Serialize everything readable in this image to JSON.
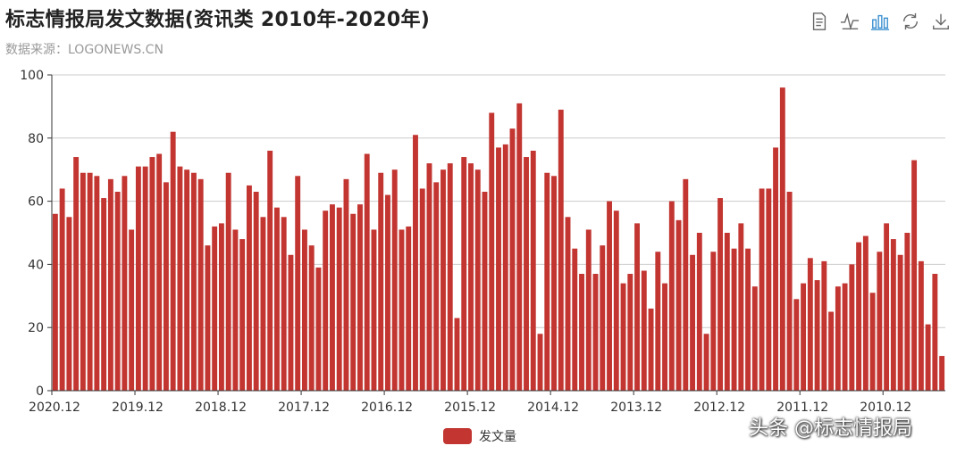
{
  "header": {
    "title": "标志情报局发文数据(资讯类 2010年-2020年)",
    "subtitle": "数据来源：LOGONEWS.CN"
  },
  "toolbox": [
    {
      "name": "data-view-icon",
      "label": "数据视图"
    },
    {
      "name": "line-chart-icon",
      "label": "切换为折线图"
    },
    {
      "name": "bar-chart-icon",
      "label": "切换为柱状图",
      "active": true
    },
    {
      "name": "restore-icon",
      "label": "还原"
    },
    {
      "name": "download-icon",
      "label": "保存为图片"
    }
  ],
  "colors": {
    "bar": "#c23531",
    "axis": "#333333",
    "grid": "#cccccc",
    "icon": "#666666",
    "icon_active": "#3a8fd0"
  },
  "chart_data": {
    "type": "bar",
    "x_tick_labels": [
      "2020.12",
      "2019.12",
      "2018.12",
      "2017.12",
      "2016.12",
      "2015.12",
      "2014.12",
      "2013.12",
      "2012.12",
      "2011.12",
      "2010.12"
    ],
    "tick_every": 12,
    "values": [
      56,
      64,
      55,
      74,
      69,
      69,
      68,
      61,
      67,
      63,
      68,
      51,
      71,
      71,
      74,
      75,
      66,
      82,
      71,
      70,
      69,
      67,
      46,
      52,
      53,
      69,
      51,
      48,
      65,
      63,
      55,
      76,
      58,
      55,
      43,
      68,
      51,
      46,
      39,
      57,
      59,
      58,
      67,
      56,
      59,
      75,
      51,
      69,
      62,
      70,
      51,
      52,
      81,
      64,
      72,
      66,
      70,
      72,
      23,
      74,
      72,
      70,
      63,
      88,
      77,
      78,
      83,
      91,
      74,
      76,
      18,
      69,
      68,
      89,
      55,
      45,
      37,
      51,
      37,
      46,
      60,
      57,
      34,
      37,
      53,
      38,
      26,
      44,
      34,
      60,
      54,
      67,
      43,
      50,
      18,
      44,
      61,
      50,
      45,
      53,
      45,
      33,
      64,
      64,
      77,
      96,
      63,
      29,
      34,
      42,
      35,
      41,
      25,
      33,
      34,
      40,
      47,
      49,
      31,
      44,
      53,
      48,
      43,
      50,
      73,
      41,
      21,
      37,
      11
    ],
    "ylim": [
      0,
      100
    ],
    "y_ticks": [
      0,
      20,
      40,
      60,
      80,
      100
    ],
    "grid": true,
    "legend": {
      "position": "bottom-center",
      "entries": [
        "发文量"
      ]
    },
    "series": [
      {
        "name": "发文量"
      }
    ]
  },
  "watermark": "头条 @标志情报局"
}
